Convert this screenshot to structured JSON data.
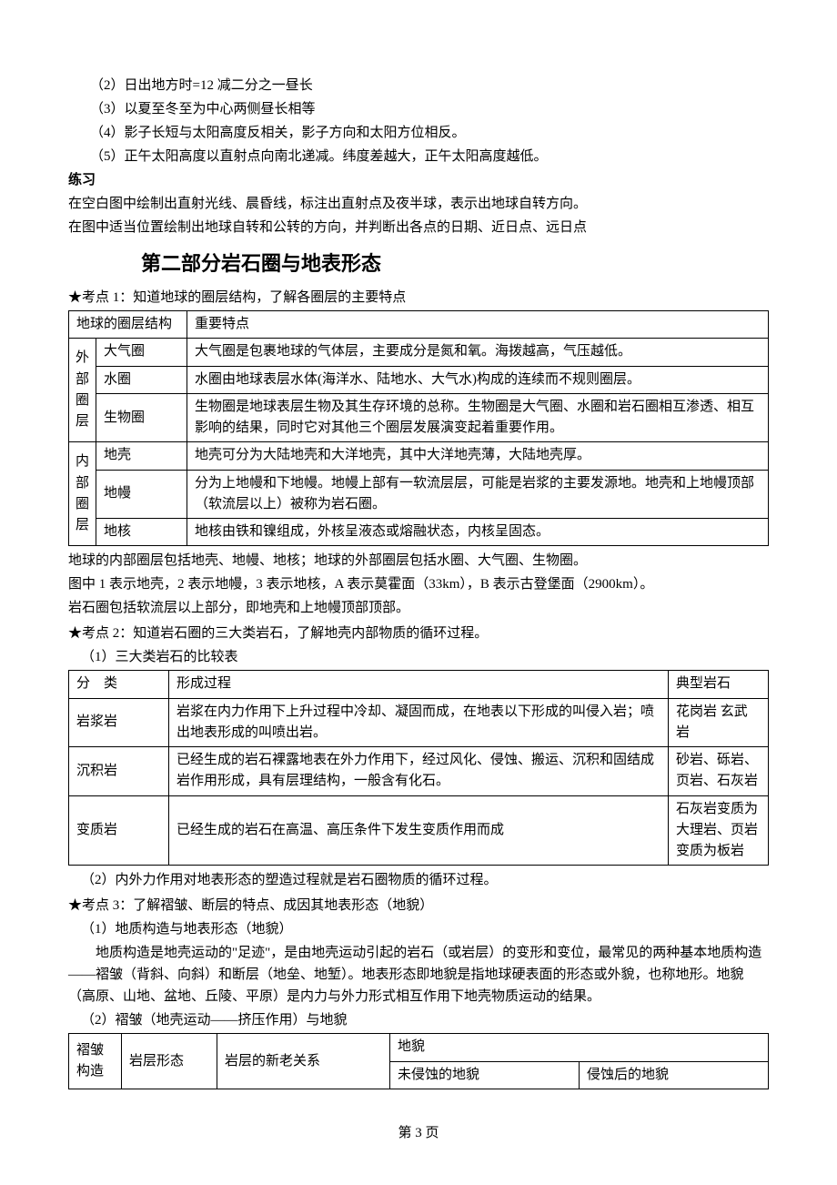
{
  "intro_points": {
    "p2": "（2）日出地方时=12 减二分之一昼长",
    "p3": "（3）以夏至冬至为中心两侧昼长相等",
    "p4": "（4）影子长短与太阳高度反相关，影子方向和太阳方位相反。",
    "p5": "（5）正午太阳高度以直射点向南北递减。纬度差越大，正午太阳高度越低。"
  },
  "practice": {
    "label": "练习",
    "line1": "在空白图中绘制出直射光线、晨昏线，标注出直射点及夜半球，表示出地球自转方向。",
    "line2": "在图中适当位置绘制出地球自转和公转的方向，并判断出各点的日期、近日点、远日点"
  },
  "section2_title": "第二部分岩石圈与地表形态",
  "kp1": {
    "title": "★考点 1：知道地球的圈层结构，了解各圈层的主要特点",
    "table": {
      "h1": "地球的圈层结构",
      "h2": "重要特点",
      "outer_label": "外部圈层",
      "inner_label": "内部圈层",
      "rows_outer": [
        {
          "name": "大气圈",
          "desc": "大气圈是包裹地球的气体层，主要成分是氮和氧。海拨越高，气压越低。"
        },
        {
          "name": "水圈",
          "desc": "水圈由地球表层水体(海洋水、陆地水、大气水)构成的连续而不规则圈层。"
        },
        {
          "name": "生物圈",
          "desc": "生物圈是地球表层生物及其生存环境的总称。生物圈是大气圈、水圈和岩石圈相互渗透、相互影响的结果，同时它对其他三个圈层发展演变起着重要作用。"
        }
      ],
      "rows_inner": [
        {
          "name": "地壳",
          "desc": "地壳可分为大陆地壳和大洋地壳，其中大洋地壳薄，大陆地壳厚。"
        },
        {
          "name": "地幔",
          "desc": "分为上地幔和下地幔。地幔上部有一软流层层，可能是岩浆的主要发源地。地壳和上地幔顶部（软流层以上）被称为岩石圈。"
        },
        {
          "name": "地核",
          "desc": "地核由铁和镍组成，外核呈液态或熔融状态，内核呈固态。"
        }
      ]
    },
    "after1": "地球的内部圈层包括地壳、地幔、地核；地球的外部圈层包括水圈、大气圈、生物圈。",
    "after2": "图中 1 表示地壳，2 表示地幔，3 表示地核，A 表示莫霍面（33km），B 表示古登堡面（2900km）。",
    "after3": "岩石圈包括软流层以上部分，即地壳和上地幔顶部顶部。"
  },
  "kp2": {
    "title": "★考点 2：知道岩石圈的三大类岩石，了解地壳内部物质的循环过程。",
    "sub1": "（1）三大类岩石的比较表",
    "table": {
      "h1": "分　类",
      "h2": "形成过程",
      "h3": "典型岩石",
      "rows": [
        {
          "cat": "岩浆岩",
          "proc": "岩浆在内力作用下上升过程中冷却、凝固而成，在地表以下形成的叫侵入岩；喷出地表形成的叫喷出岩。",
          "ex": "花岗岩\n玄武岩"
        },
        {
          "cat": "沉积岩",
          "proc": "已经生成的岩石裸露地表在外力作用下，经过风化、侵蚀、搬运、沉积和固结成岩作用形成，具有层理结构，一般含有化石。",
          "ex": "砂岩、砾岩、页岩、石灰岩"
        },
        {
          "cat": "变质岩",
          "proc": "已经生成的岩石在高温、高压条件下发生变质作用而成",
          "ex": "石灰岩变质为大理岩、页岩变质为板岩"
        }
      ]
    },
    "sub2": "（2）内外力作用对地表形态的塑造过程就是岩石圈物质的循环过程。"
  },
  "kp3": {
    "title": "★考点 3：了解褶皱、断层的特点、成因其地表形态（地貌）",
    "sub1": "（1）地质构造与地表形态（地貌）",
    "body": "地质构造是地壳运动的\"足迹\"，是由地壳运动引起的岩石（或岩层）的变形和变位，最常见的两种基本地质构造——褶皱（背斜、向斜）和断层（地垒、地堑）。地表形态即地貌是指地球硬表面的形态或外貌，也称地形。地貌（高原、山地、盆地、丘陵、平原）是内力与外力形式相互作用下地壳物质运动的结果。",
    "sub2": "（2）褶皱（地壳运动——挤压作用）与地貌",
    "table": {
      "h_a": "褶皱构造",
      "h_b": "岩层形态",
      "h_c": "岩层的新老关系",
      "h_d": "地貌",
      "h_d1": "未侵蚀的地貌",
      "h_d2": "侵蚀后的地貌"
    }
  },
  "page_footer": "第 3 页"
}
